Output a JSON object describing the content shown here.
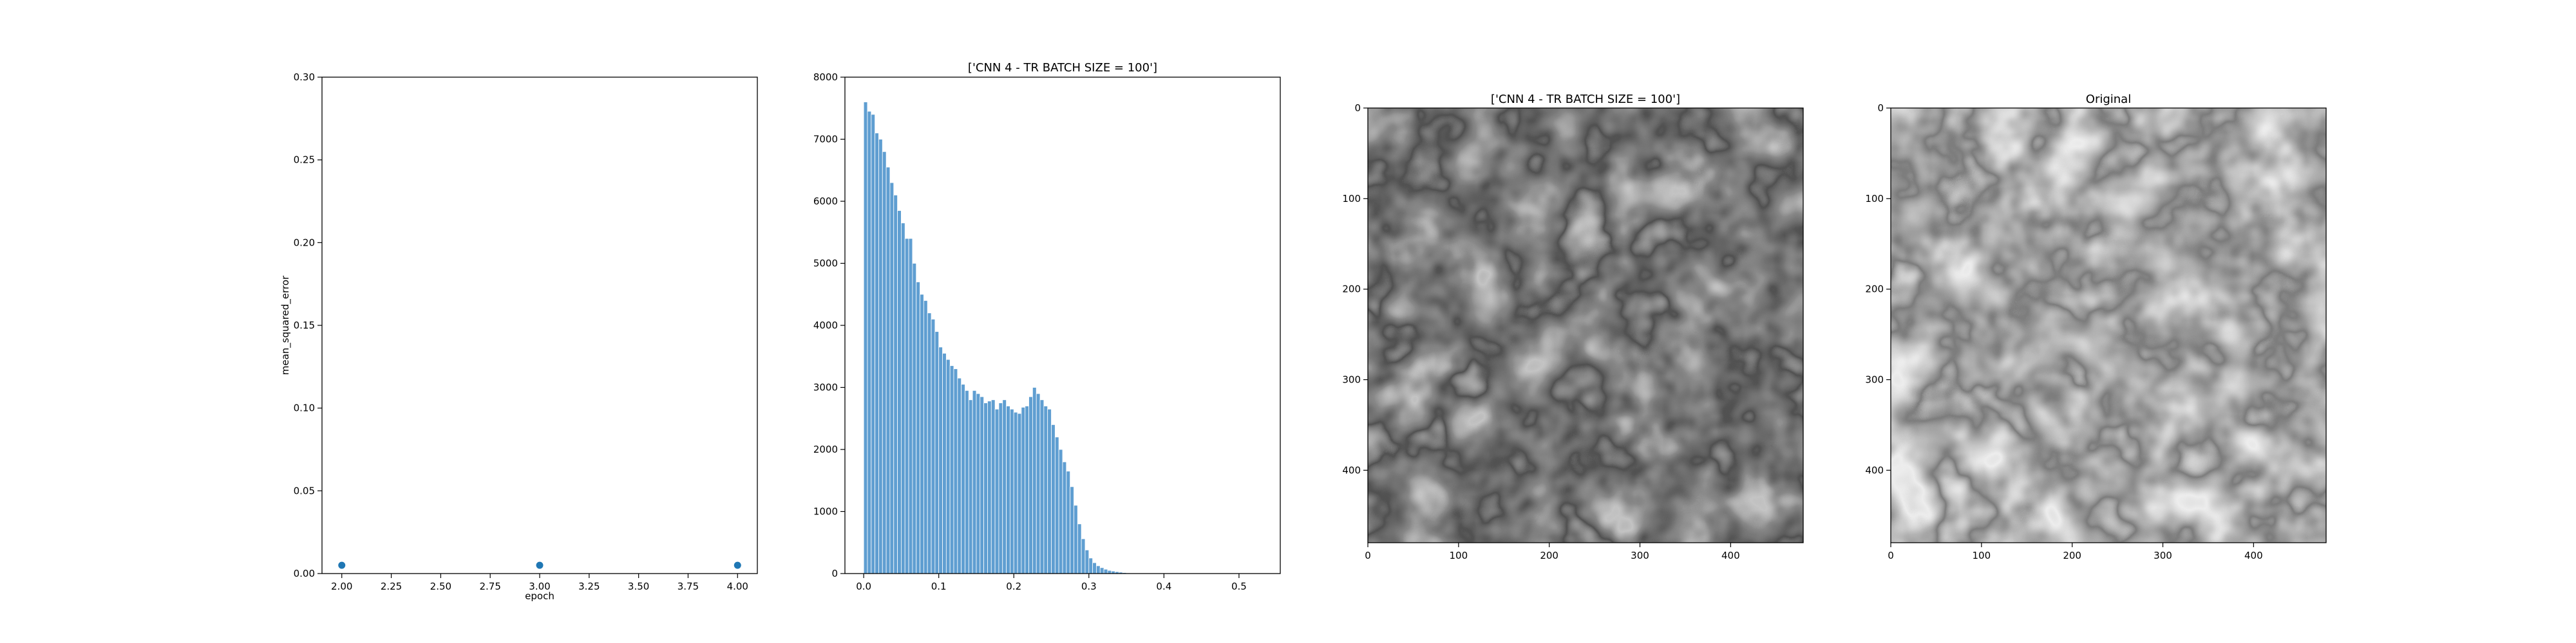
{
  "chart_data": [
    {
      "type": "scatter",
      "title": "",
      "xlabel": "epoch",
      "ylabel": "mean_squared_error",
      "xlim": [
        1.9,
        4.1
      ],
      "ylim": [
        0.0,
        0.3
      ],
      "x_ticks": [
        2.0,
        2.25,
        2.5,
        2.75,
        3.0,
        3.25,
        3.5,
        3.75,
        4.0
      ],
      "x_tick_labels": [
        "2.00",
        "2.25",
        "2.50",
        "2.75",
        "3.00",
        "3.25",
        "3.50",
        "3.75",
        "4.00"
      ],
      "y_ticks": [
        0.0,
        0.05,
        0.1,
        0.15,
        0.2,
        0.25,
        0.3
      ],
      "y_tick_labels": [
        "0.00",
        "0.05",
        "0.10",
        "0.15",
        "0.20",
        "0.25",
        "0.30"
      ],
      "x": [
        2.0,
        3.0,
        4.0
      ],
      "y": [
        0.005,
        0.005,
        0.005
      ],
      "color": "#1f77b4",
      "grid": false
    },
    {
      "type": "bar",
      "title": "['CNN 4 - TR BATCH SIZE = 100']",
      "xlabel": "",
      "ylabel": "",
      "xlim": [
        -0.025,
        0.555
      ],
      "ylim": [
        0,
        8000
      ],
      "x_ticks": [
        0.0,
        0.1,
        0.2,
        0.3,
        0.4,
        0.5
      ],
      "x_tick_labels": [
        "0.0",
        "0.1",
        "0.2",
        "0.3",
        "0.4",
        "0.5"
      ],
      "y_ticks": [
        0,
        1000,
        2000,
        3000,
        4000,
        5000,
        6000,
        7000,
        8000
      ],
      "y_tick_labels": [
        "0",
        "1000",
        "2000",
        "3000",
        "4000",
        "5000",
        "6000",
        "7000",
        "8000"
      ],
      "bin_start": 0.0,
      "bin_width": 0.005,
      "values": [
        7600,
        7450,
        7400,
        7100,
        7000,
        6800,
        6550,
        6300,
        6100,
        5850,
        5650,
        5400,
        5400,
        5000,
        4700,
        4500,
        4400,
        4200,
        4100,
        3900,
        3650,
        3550,
        3450,
        3350,
        3300,
        3150,
        3050,
        2950,
        2800,
        2950,
        2900,
        2850,
        2750,
        2780,
        2800,
        2650,
        2750,
        2800,
        2700,
        2650,
        2600,
        2580,
        2680,
        2700,
        2850,
        3000,
        2900,
        2800,
        2700,
        2650,
        2400,
        2200,
        2000,
        1800,
        1650,
        1400,
        1100,
        800,
        560,
        380,
        250,
        175,
        125,
        95,
        70,
        50,
        40,
        30,
        22,
        15,
        10,
        8,
        5,
        3,
        2,
        1,
        1,
        0,
        0,
        0
      ],
      "color": "#5f9ed1",
      "edgecolor": "#ffffff",
      "grid": false
    },
    {
      "type": "heatmap",
      "title": "['CNN 4 - TR BATCH SIZE = 100']",
      "colormap": "gray",
      "x_ticks": [
        0,
        100,
        200,
        300,
        400
      ],
      "y_ticks": [
        0,
        100,
        200,
        300,
        400
      ],
      "x_tick_labels": [
        "0",
        "100",
        "200",
        "300",
        "400"
      ],
      "y_tick_labels": [
        "0",
        "100",
        "200",
        "300",
        "400"
      ],
      "extent": [
        0,
        480,
        480,
        0
      ]
    },
    {
      "type": "heatmap",
      "title": "Original",
      "colormap": "gray",
      "x_ticks": [
        0,
        100,
        200,
        300,
        400
      ],
      "y_ticks": [
        0,
        100,
        200,
        300,
        400
      ],
      "x_tick_labels": [
        "0",
        "100",
        "200",
        "300",
        "400"
      ],
      "y_tick_labels": [
        "0",
        "100",
        "200",
        "300",
        "400"
      ],
      "extent": [
        0,
        480,
        480,
        0
      ]
    }
  ]
}
